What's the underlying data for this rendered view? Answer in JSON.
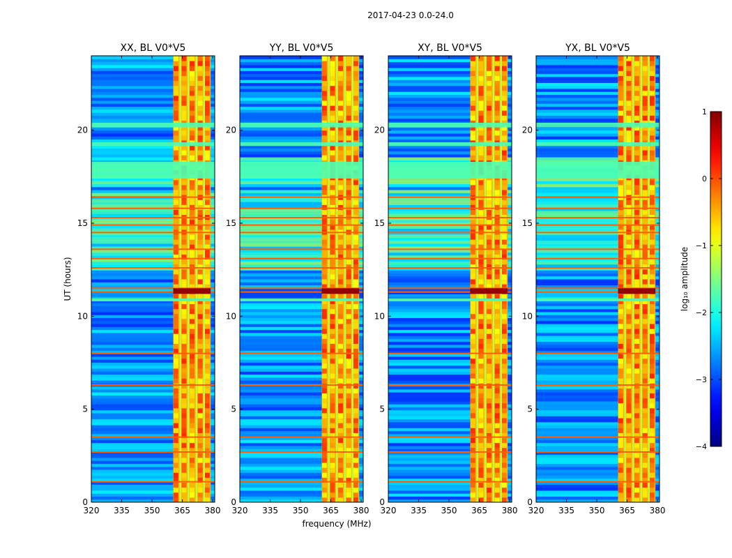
{
  "suptitle": "2017-04-23 0.0-24.0",
  "chart_data": {
    "type": "heatmap",
    "xlabel": "frequency (MHz)",
    "ylabel": "UT (hours)",
    "xlim": [
      320,
      381
    ],
    "ylim": [
      0,
      24
    ],
    "xticks": [
      320,
      335,
      350,
      365,
      380
    ],
    "yticks": [
      0,
      5,
      10,
      15,
      20
    ],
    "panels": [
      {
        "title": "XX, BL V0*V5"
      },
      {
        "title": "YY, BL V0*V5"
      },
      {
        "title": "XY, BL V0*V5"
      },
      {
        "title": "YX, BL V0*V5"
      }
    ],
    "band": {
      "lo": 360.5,
      "hi": 379,
      "channels": [
        362,
        366,
        370,
        374,
        377.5
      ]
    },
    "hot_rows_ut": [
      1.1,
      2.7,
      3.5,
      6.3,
      8.0,
      10.9,
      11.3,
      11.5,
      12.6,
      13.1,
      13.6,
      14.5,
      14.9,
      15.3,
      15.8,
      16.4
    ],
    "saturated_rows_ut": [
      [
        10.8,
        10.95
      ],
      [
        19.15,
        19.35
      ],
      [
        20.15,
        20.4
      ],
      [
        17.4,
        18.3
      ]
    ],
    "colorbar": {
      "label": "log₁₀ amplitude",
      "min": -4,
      "max": 1,
      "ticks": [
        1,
        0,
        -1,
        -2,
        -3,
        -4
      ],
      "tick_labels": [
        "1",
        "0",
        "−1",
        "−2",
        "−3",
        "−4"
      ],
      "colormap": "jet"
    }
  }
}
